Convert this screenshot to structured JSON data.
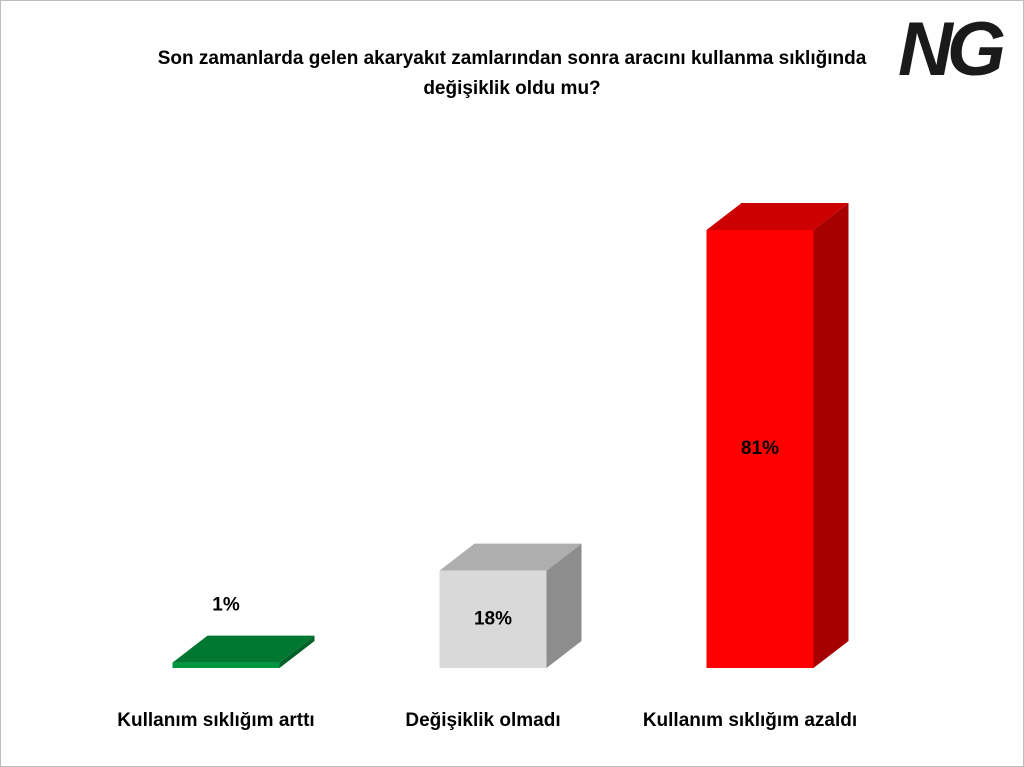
{
  "chart_data": {
    "type": "bar3d",
    "title": "Son zamanlarda gelen akaryakıt zamlarından sonra aracını kullanma sıklığında değişiklik oldu mu?",
    "logo": "NG",
    "categories": [
      "Kullanım sıklığım arttı",
      "Değişiklik olmadı",
      "Kullanım sıklığım azaldı"
    ],
    "values": [
      1,
      18,
      81
    ],
    "value_labels": [
      "1%",
      "18%",
      "81%"
    ],
    "colors": [
      "#00963f",
      "#d9d9d9",
      "#ff0000"
    ]
  }
}
